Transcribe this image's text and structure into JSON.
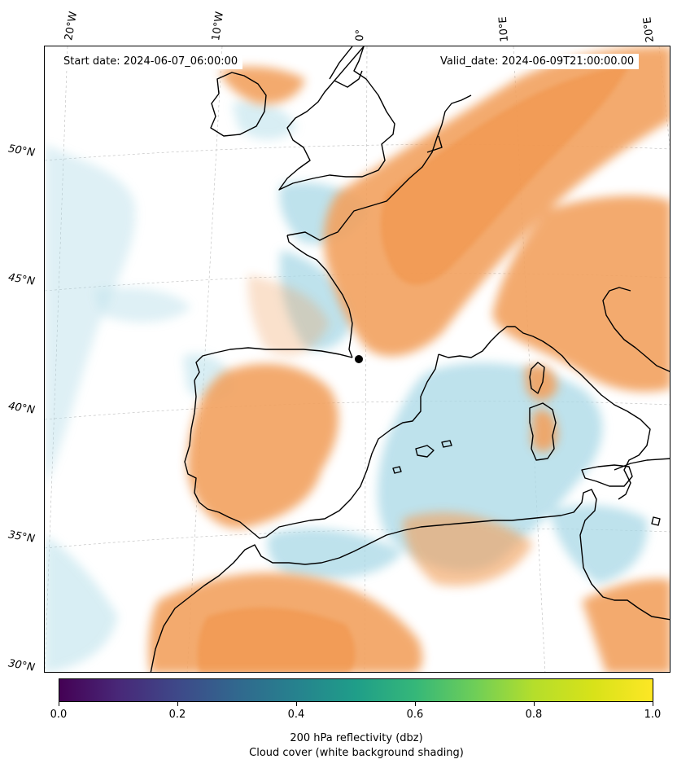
{
  "map": {
    "start_date": "Start date: 2024-06-07_06:00:00",
    "valid_date": "Valid_date: 2024-06-09T21:00:00.00",
    "longitude_labels": [
      "20°W",
      "10°W",
      "0°",
      "10°E",
      "20°E"
    ],
    "latitude_labels": [
      "50°N",
      "45°N",
      "40°N",
      "35°N",
      "30°N"
    ],
    "shading_colors": {
      "reflectivity": "#f2a15e",
      "cloud_cover": "#a8d8e6",
      "coastline": "#000000"
    }
  },
  "colorbar": {
    "colormap": "viridis",
    "ticks": [
      "0.0",
      "0.2",
      "0.4",
      "0.6",
      "0.8",
      "1.0"
    ],
    "label_line1": "200 hPa reflectivity (dbz)",
    "label_line2": "Cloud cover (white background shading)"
  }
}
